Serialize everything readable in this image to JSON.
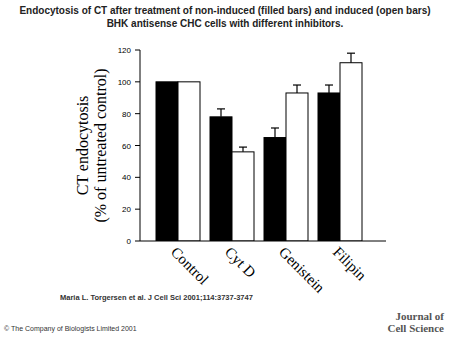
{
  "chart_data": {
    "type": "bar",
    "title": "Endocytosis of CT after treatment of non-induced (filled bars) and induced (open bars) BHK antisense CHC cells with different inhibitors.",
    "y_label": [
      "CT endocytosis",
      "(% of untreated control)"
    ],
    "categories": [
      "Control",
      "Cyt D",
      "Genistein",
      "Filipin"
    ],
    "series": [
      {
        "color": "#000000",
        "values": [
          100,
          78,
          65,
          93
        ],
        "errors": [
          0,
          5,
          6,
          5
        ]
      },
      {
        "color": "#ffffff",
        "values": [
          100,
          56,
          93,
          112
        ],
        "errors": [
          0,
          3,
          5,
          6
        ]
      }
    ],
    "ylim": [
      0,
      120
    ],
    "yticks": [
      0,
      20,
      40,
      60,
      80,
      100,
      120
    ],
    "grid": false
  },
  "footer": {
    "source": "Maria L. Torgersen et al. J Cell Sci 2001;114:3737-3747",
    "copyright": "© The Company of Biologists Limited 2001",
    "logo": [
      "Journal of",
      "Cell Science"
    ]
  }
}
